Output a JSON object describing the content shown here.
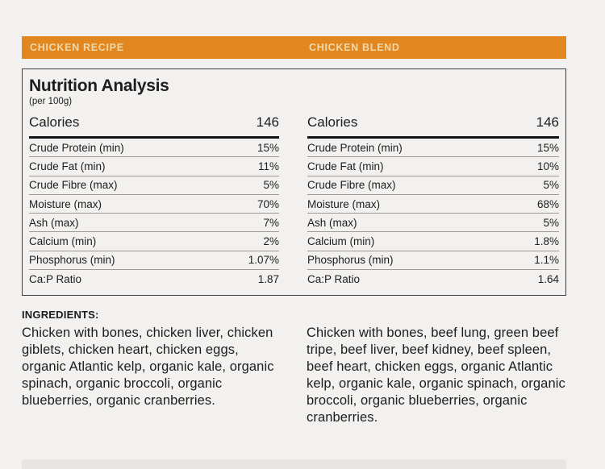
{
  "header": {
    "tabs": [
      {
        "label": "CHICKEN RECIPE"
      },
      {
        "label": "CHICKEN BLEND"
      }
    ]
  },
  "nutrition": {
    "title": "Nutrition Analysis",
    "subtitle": "(per 100g)",
    "calories_label": "Calories",
    "row_labels": [
      "Crude Protein (min)",
      "Crude Fat (min)",
      "Crude Fibre (max)",
      "Moisture (max)",
      "Ash (max)",
      "Calcium (min)",
      "Phosphorus (min)",
      "Ca:P Ratio"
    ],
    "columns": [
      {
        "product": "CHICKEN RECIPE",
        "calories": "146",
        "values": [
          "15%",
          "11%",
          "5%",
          "70%",
          "7%",
          "2%",
          "1.07%",
          "1.87"
        ]
      },
      {
        "product": "CHICKEN BLEND",
        "calories": "146",
        "values": [
          "15%",
          "10%",
          "5%",
          "68%",
          "5%",
          "1.8%",
          "1.1%",
          "1.64"
        ]
      }
    ]
  },
  "ingredients": {
    "heading": "INGREDIENTS:",
    "columns": [
      "Chicken with bones, chicken liver, chicken giblets, chicken heart, chicken eggs, organic Atlantic kelp, organic kale, organic spinach, organic broccoli, organic blueberries, organic cranberries.",
      "Chicken with bones, beef lung, green beef tripe, beef liver, beef kidney, beef spleen, beef heart, chicken eggs, organic Atlantic kelp, organic kale, organic spinach, organic broccoli, organic blueberries, organic cranberries."
    ]
  },
  "colors": {
    "accent_orange": "#E2871F",
    "header_label_text": "#F2D8A6",
    "page_background": "#F2F1EF",
    "body_text": "#1D1D1D",
    "row_separator": "#9B9A98",
    "bottom_bar": "#E8E6E4"
  }
}
